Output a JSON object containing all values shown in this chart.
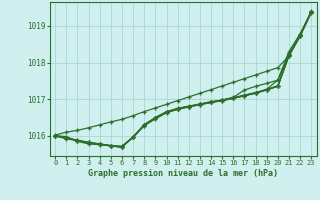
{
  "title": "Graphe pression niveau de la mer (hPa)",
  "background_color": "#cff0ee",
  "grid_color": "#a8d8d4",
  "line_color": "#2d6e2d",
  "xlim": [
    -0.5,
    23.5
  ],
  "ylim": [
    1015.45,
    1019.65
  ],
  "yticks": [
    1016,
    1017,
    1018,
    1019
  ],
  "xticks": [
    0,
    1,
    2,
    3,
    4,
    5,
    6,
    7,
    8,
    9,
    10,
    11,
    12,
    13,
    14,
    15,
    16,
    17,
    18,
    19,
    20,
    21,
    22,
    23
  ],
  "series": [
    [
      1016.0,
      1015.98,
      1015.85,
      1015.78,
      1015.76,
      1015.73,
      1015.72,
      1015.96,
      1016.28,
      1016.46,
      1016.63,
      1016.72,
      1016.79,
      1016.85,
      1016.91,
      1016.96,
      1017.02,
      1017.09,
      1017.16,
      1017.25,
      1017.35,
      1018.18,
      1018.72,
      1019.36
    ],
    [
      1016.0,
      1015.95,
      1015.87,
      1015.8,
      1015.77,
      1015.73,
      1015.7,
      1015.97,
      1016.3,
      1016.49,
      1016.65,
      1016.74,
      1016.8,
      1016.86,
      1016.92,
      1016.97,
      1017.03,
      1017.1,
      1017.17,
      1017.26,
      1017.36,
      1018.2,
      1018.74,
      1019.37
    ],
    [
      1016.0,
      1015.93,
      1015.88,
      1015.82,
      1015.78,
      1015.73,
      1015.69,
      1015.97,
      1016.3,
      1016.49,
      1016.65,
      1016.74,
      1016.8,
      1016.86,
      1016.92,
      1016.97,
      1017.03,
      1017.1,
      1017.17,
      1017.26,
      1017.36,
      1018.2,
      1018.74,
      1019.37
    ],
    [
      1016.0,
      1015.92,
      1015.87,
      1015.82,
      1015.77,
      1015.73,
      1015.7,
      1015.97,
      1016.28,
      1016.48,
      1016.64,
      1016.73,
      1016.79,
      1016.85,
      1016.91,
      1016.96,
      1017.03,
      1017.1,
      1017.17,
      1017.26,
      1017.36,
      1018.2,
      1018.73,
      1019.37
    ],
    [
      1016.0,
      1015.95,
      1015.88,
      1015.82,
      1015.78,
      1015.73,
      1015.7,
      1015.97,
      1016.3,
      1016.5,
      1016.66,
      1016.75,
      1016.81,
      1016.87,
      1016.93,
      1016.98,
      1017.05,
      1017.25,
      1017.35,
      1017.43,
      1017.52,
      1018.3,
      1018.78,
      1019.39
    ],
    [
      1016.0,
      1015.94,
      1015.87,
      1015.81,
      1015.77,
      1015.72,
      1015.69,
      1015.97,
      1016.29,
      1016.49,
      1016.65,
      1016.74,
      1016.8,
      1016.86,
      1016.92,
      1016.97,
      1017.04,
      1017.11,
      1017.18,
      1017.27,
      1017.52,
      1018.22,
      1018.75,
      1019.38
    ],
    [
      1016.02,
      1016.1,
      1016.15,
      1016.22,
      1016.3,
      1016.38,
      1016.45,
      1016.55,
      1016.66,
      1016.76,
      1016.86,
      1016.96,
      1017.06,
      1017.16,
      1017.26,
      1017.36,
      1017.46,
      1017.56,
      1017.66,
      1017.76,
      1017.86,
      1018.18,
      1018.72,
      1019.4
    ]
  ]
}
